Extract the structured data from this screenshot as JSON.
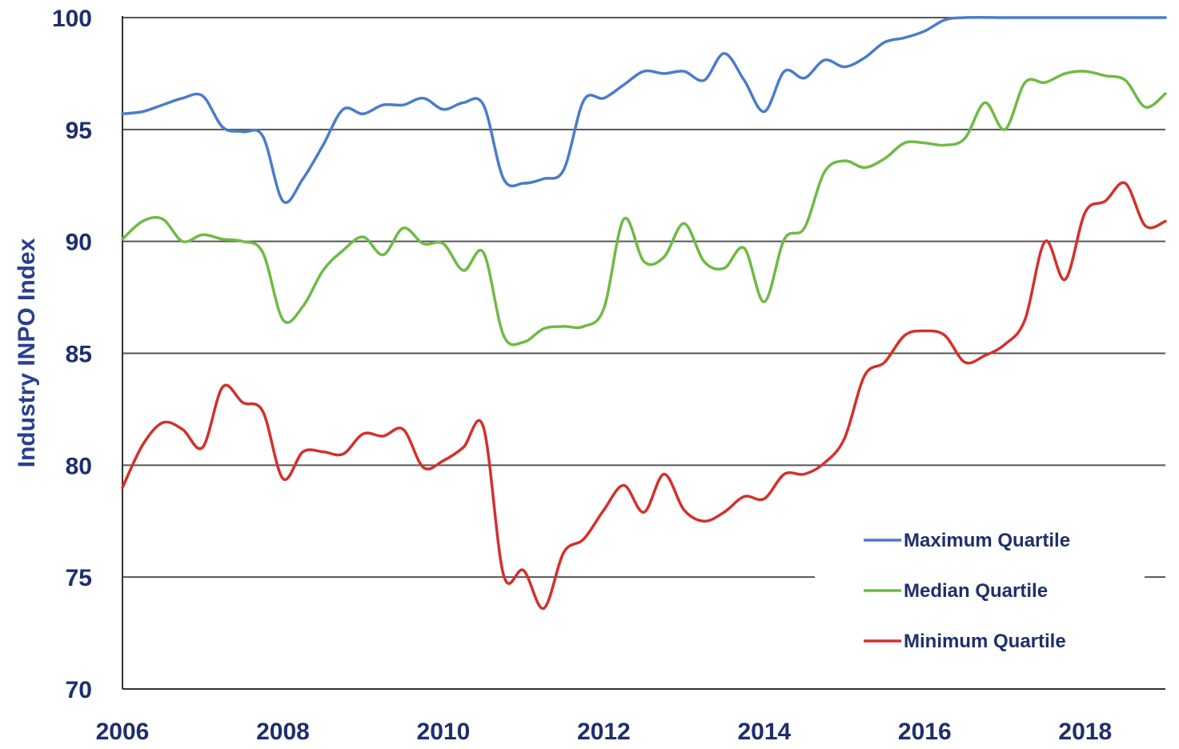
{
  "chart_data": {
    "type": "line",
    "title": "",
    "xlabel": "",
    "ylabel": "Industry INPO Index",
    "xlim": [
      2006,
      2019
    ],
    "ylim": [
      70,
      100
    ],
    "x_ticks": [
      2006,
      2008,
      2010,
      2012,
      2014,
      2016,
      2018
    ],
    "y_ticks": [
      70,
      75,
      80,
      85,
      90,
      95,
      100
    ],
    "grid": "horizontal",
    "legend_position": "bottom-right",
    "series": [
      {
        "name": "Maximum Quartile",
        "color": "#4a7cc9",
        "points": [
          [
            2006.0,
            95.7
          ],
          [
            2006.25,
            95.8
          ],
          [
            2006.5,
            96.1
          ],
          [
            2006.75,
            96.4
          ],
          [
            2007.0,
            96.5
          ],
          [
            2007.25,
            95.1
          ],
          [
            2007.5,
            94.9
          ],
          [
            2007.75,
            94.7
          ],
          [
            2008.0,
            91.8
          ],
          [
            2008.25,
            92.8
          ],
          [
            2008.5,
            94.3
          ],
          [
            2008.75,
            95.9
          ],
          [
            2009.0,
            95.7
          ],
          [
            2009.25,
            96.1
          ],
          [
            2009.5,
            96.1
          ],
          [
            2009.75,
            96.4
          ],
          [
            2010.0,
            95.9
          ],
          [
            2010.25,
            96.2
          ],
          [
            2010.5,
            96.1
          ],
          [
            2010.75,
            92.8
          ],
          [
            2011.0,
            92.6
          ],
          [
            2011.25,
            92.8
          ],
          [
            2011.5,
            93.2
          ],
          [
            2011.75,
            96.3
          ],
          [
            2012.0,
            96.4
          ],
          [
            2012.25,
            97.0
          ],
          [
            2012.5,
            97.6
          ],
          [
            2012.75,
            97.5
          ],
          [
            2013.0,
            97.6
          ],
          [
            2013.25,
            97.2
          ],
          [
            2013.5,
            98.4
          ],
          [
            2013.75,
            97.2
          ],
          [
            2014.0,
            95.8
          ],
          [
            2014.25,
            97.6
          ],
          [
            2014.5,
            97.3
          ],
          [
            2014.75,
            98.1
          ],
          [
            2015.0,
            97.8
          ],
          [
            2015.25,
            98.2
          ],
          [
            2015.5,
            98.9
          ],
          [
            2015.75,
            99.1
          ],
          [
            2016.0,
            99.4
          ],
          [
            2016.25,
            99.9
          ],
          [
            2016.5,
            100.0
          ],
          [
            2017.0,
            100.0
          ],
          [
            2017.5,
            100.0
          ],
          [
            2018.0,
            100.0
          ],
          [
            2018.5,
            100.0
          ],
          [
            2019.0,
            100.0
          ]
        ]
      },
      {
        "name": "Median Quartile",
        "color": "#6fba45",
        "points": [
          [
            2006.0,
            90.1
          ],
          [
            2006.25,
            90.9
          ],
          [
            2006.5,
            91.0
          ],
          [
            2006.75,
            90.0
          ],
          [
            2007.0,
            90.3
          ],
          [
            2007.25,
            90.1
          ],
          [
            2007.5,
            90.0
          ],
          [
            2007.75,
            89.5
          ],
          [
            2008.0,
            86.5
          ],
          [
            2008.25,
            87.1
          ],
          [
            2008.5,
            88.7
          ],
          [
            2008.75,
            89.6
          ],
          [
            2009.0,
            90.2
          ],
          [
            2009.25,
            89.4
          ],
          [
            2009.5,
            90.6
          ],
          [
            2009.75,
            89.9
          ],
          [
            2010.0,
            89.9
          ],
          [
            2010.25,
            88.7
          ],
          [
            2010.5,
            89.5
          ],
          [
            2010.75,
            85.8
          ],
          [
            2011.0,
            85.5
          ],
          [
            2011.25,
            86.1
          ],
          [
            2011.5,
            86.2
          ],
          [
            2011.75,
            86.2
          ],
          [
            2012.0,
            87.0
          ],
          [
            2012.25,
            91.0
          ],
          [
            2012.5,
            89.1
          ],
          [
            2012.75,
            89.3
          ],
          [
            2013.0,
            90.8
          ],
          [
            2013.25,
            89.1
          ],
          [
            2013.5,
            88.8
          ],
          [
            2013.75,
            89.7
          ],
          [
            2014.0,
            87.3
          ],
          [
            2014.25,
            90.1
          ],
          [
            2014.5,
            90.6
          ],
          [
            2014.75,
            93.1
          ],
          [
            2015.0,
            93.6
          ],
          [
            2015.25,
            93.3
          ],
          [
            2015.5,
            93.7
          ],
          [
            2015.75,
            94.4
          ],
          [
            2016.0,
            94.4
          ],
          [
            2016.25,
            94.3
          ],
          [
            2016.5,
            94.6
          ],
          [
            2016.75,
            96.2
          ],
          [
            2017.0,
            95.0
          ],
          [
            2017.25,
            97.1
          ],
          [
            2017.5,
            97.1
          ],
          [
            2017.75,
            97.5
          ],
          [
            2018.0,
            97.6
          ],
          [
            2018.25,
            97.4
          ],
          [
            2018.5,
            97.2
          ],
          [
            2018.75,
            96.0
          ],
          [
            2019.0,
            96.6
          ]
        ]
      },
      {
        "name": "Minimum Quartile",
        "color": "#d4302b",
        "points": [
          [
            2006.0,
            79.0
          ],
          [
            2006.25,
            80.9
          ],
          [
            2006.5,
            81.9
          ],
          [
            2006.75,
            81.6
          ],
          [
            2007.0,
            80.8
          ],
          [
            2007.25,
            83.5
          ],
          [
            2007.5,
            82.8
          ],
          [
            2007.75,
            82.4
          ],
          [
            2008.0,
            79.4
          ],
          [
            2008.25,
            80.6
          ],
          [
            2008.5,
            80.6
          ],
          [
            2008.75,
            80.5
          ],
          [
            2009.0,
            81.4
          ],
          [
            2009.25,
            81.3
          ],
          [
            2009.5,
            81.6
          ],
          [
            2009.75,
            79.9
          ],
          [
            2010.0,
            80.2
          ],
          [
            2010.25,
            80.8
          ],
          [
            2010.5,
            81.7
          ],
          [
            2010.75,
            75.1
          ],
          [
            2011.0,
            75.3
          ],
          [
            2011.25,
            73.6
          ],
          [
            2011.5,
            76.1
          ],
          [
            2011.75,
            76.7
          ],
          [
            2012.0,
            78.0
          ],
          [
            2012.25,
            79.1
          ],
          [
            2012.5,
            77.9
          ],
          [
            2012.75,
            79.6
          ],
          [
            2013.0,
            78.0
          ],
          [
            2013.25,
            77.5
          ],
          [
            2013.5,
            77.9
          ],
          [
            2013.75,
            78.6
          ],
          [
            2014.0,
            78.5
          ],
          [
            2014.25,
            79.6
          ],
          [
            2014.5,
            79.6
          ],
          [
            2014.75,
            80.1
          ],
          [
            2015.0,
            81.2
          ],
          [
            2015.25,
            84.0
          ],
          [
            2015.5,
            84.6
          ],
          [
            2015.75,
            85.8
          ],
          [
            2016.0,
            86.0
          ],
          [
            2016.25,
            85.8
          ],
          [
            2016.5,
            84.6
          ],
          [
            2016.75,
            84.9
          ],
          [
            2017.0,
            85.4
          ],
          [
            2017.25,
            86.5
          ],
          [
            2017.5,
            90.0
          ],
          [
            2017.75,
            88.3
          ],
          [
            2018.0,
            91.3
          ],
          [
            2018.25,
            91.8
          ],
          [
            2018.5,
            92.6
          ],
          [
            2018.75,
            90.7
          ],
          [
            2019.0,
            90.9
          ]
        ]
      }
    ]
  }
}
